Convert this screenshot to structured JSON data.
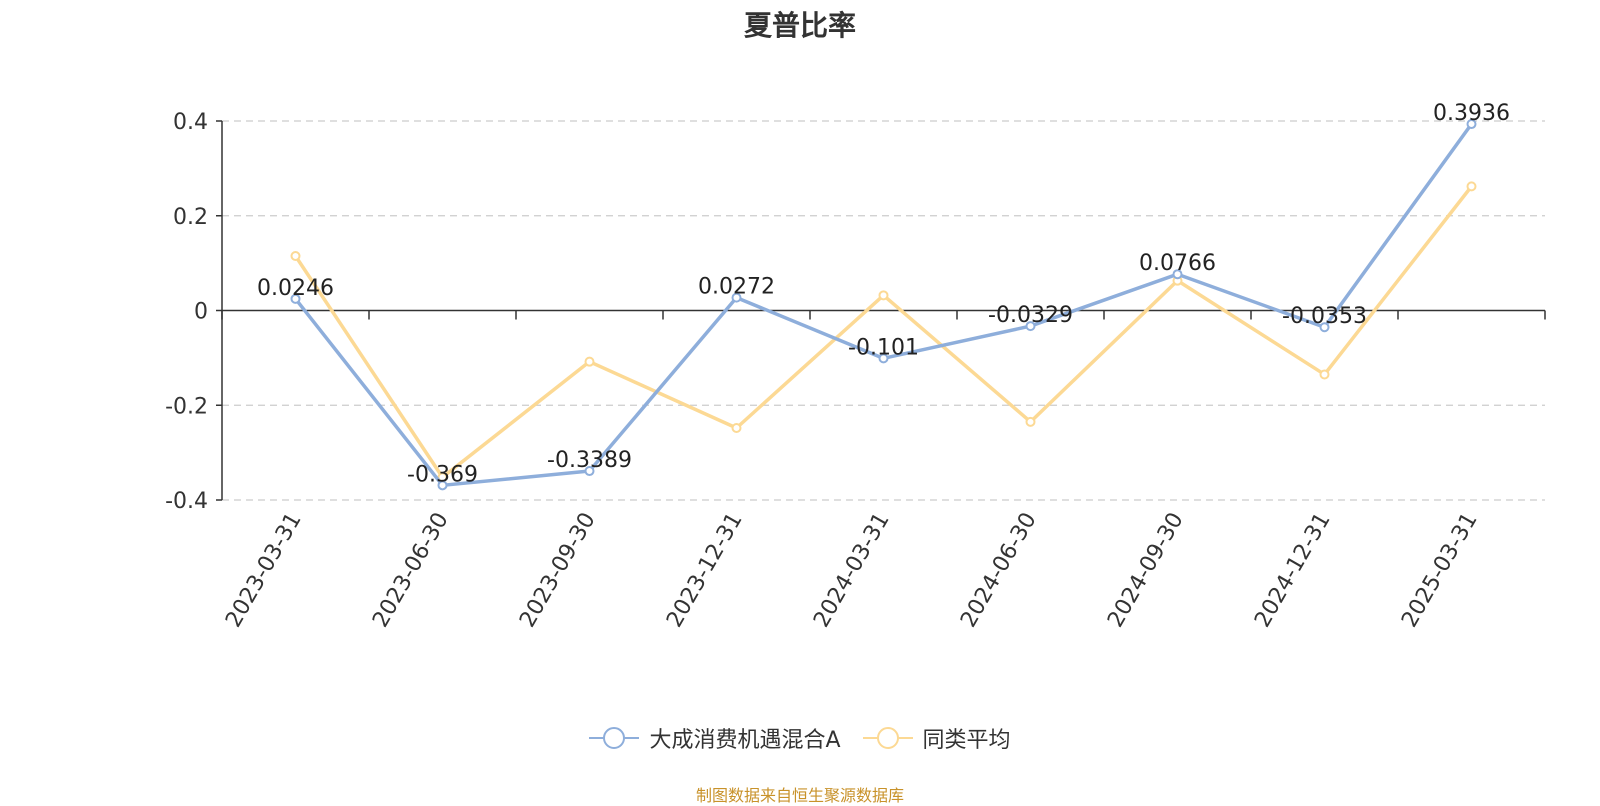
{
  "chart_data": {
    "type": "line",
    "title": "夏普比率",
    "x": [
      "2023-03-31",
      "2023-06-30",
      "2023-09-30",
      "2023-12-31",
      "2024-03-31",
      "2024-06-30",
      "2024-09-30",
      "2024-12-31",
      "2025-03-31"
    ],
    "series": [
      {
        "name": "大成消费机遇混合A",
        "color": "#8eaedb",
        "values": [
          0.0246,
          -0.369,
          -0.3389,
          0.0272,
          -0.101,
          -0.0329,
          0.0766,
          -0.0353,
          0.3936
        ],
        "labels": [
          "0.0246",
          "-0.369",
          "-0.3389",
          "0.0272",
          "-0.101",
          "-0.0329",
          "0.0766",
          "-0.0353",
          "0.3936"
        ]
      },
      {
        "name": "同类平均",
        "color": "#fcd994",
        "values": [
          0.115,
          -0.352,
          -0.108,
          -0.248,
          0.032,
          -0.235,
          0.063,
          -0.135,
          0.262
        ]
      }
    ],
    "yticks": [
      "0.4",
      "0.2",
      "0",
      "-0.2",
      "-0.4"
    ],
    "ylim": [
      -0.4,
      0.4
    ],
    "grid": true,
    "legend_position": "bottom"
  },
  "source": "制图数据来自恒生聚源数据库"
}
